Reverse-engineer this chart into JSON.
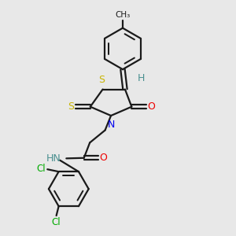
{
  "bg_color": "#e8e8e8",
  "bond_color": "#1a1a1a",
  "line_width": 1.6,
  "figsize": [
    3.0,
    3.0
  ],
  "dpi": 100,
  "colors": {
    "S": "#c8b400",
    "N": "#0000ee",
    "O": "#ee0000",
    "H": "#4a9090",
    "Cl": "#00aa00",
    "C": "#1a1a1a"
  }
}
